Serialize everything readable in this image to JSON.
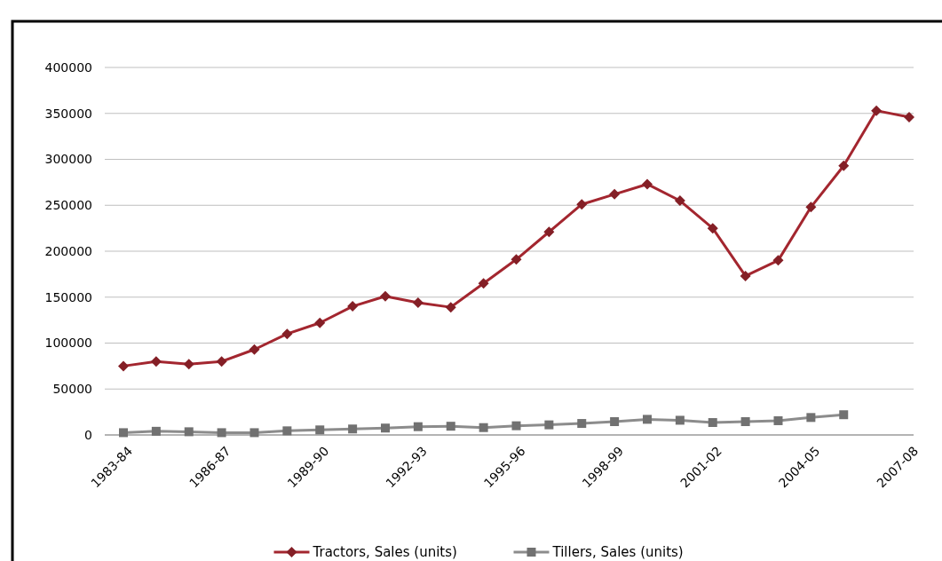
{
  "chart_data": {
    "type": "line",
    "categories": [
      "1983-84",
      null,
      null,
      "1986-87",
      null,
      null,
      "1989-90",
      null,
      null,
      "1992-93",
      null,
      null,
      "1995-96",
      null,
      null,
      "1998-99",
      null,
      null,
      "2001-02",
      null,
      null,
      "2004-05",
      null,
      null,
      "2007-08"
    ],
    "series": [
      {
        "name": "Tractors, Sales (units)",
        "color": "#a3262f",
        "marker": "diamond",
        "values": [
          75000,
          80000,
          77000,
          80000,
          93000,
          110000,
          122000,
          140000,
          151000,
          144000,
          139000,
          165000,
          191000,
          221000,
          251000,
          262000,
          273000,
          255000,
          225000,
          173000,
          190000,
          248000,
          293000,
          353000,
          346000
        ]
      },
      {
        "name": "Tillers, Sales (units)",
        "color": "#8c8c8c",
        "marker": "square",
        "values": [
          2500,
          4000,
          3500,
          2500,
          2500,
          4500,
          5500,
          6500,
          7500,
          9000,
          9500,
          8000,
          10000,
          11000,
          12500,
          14500,
          17000,
          16000,
          13500,
          14500,
          15500,
          19000,
          22000,
          null,
          null
        ]
      }
    ],
    "ylim": [
      0,
      400000
    ],
    "yticks": [
      0,
      50000,
      100000,
      150000,
      200000,
      250000,
      300000,
      350000,
      400000
    ],
    "grid": "y",
    "legend": "bottom"
  }
}
